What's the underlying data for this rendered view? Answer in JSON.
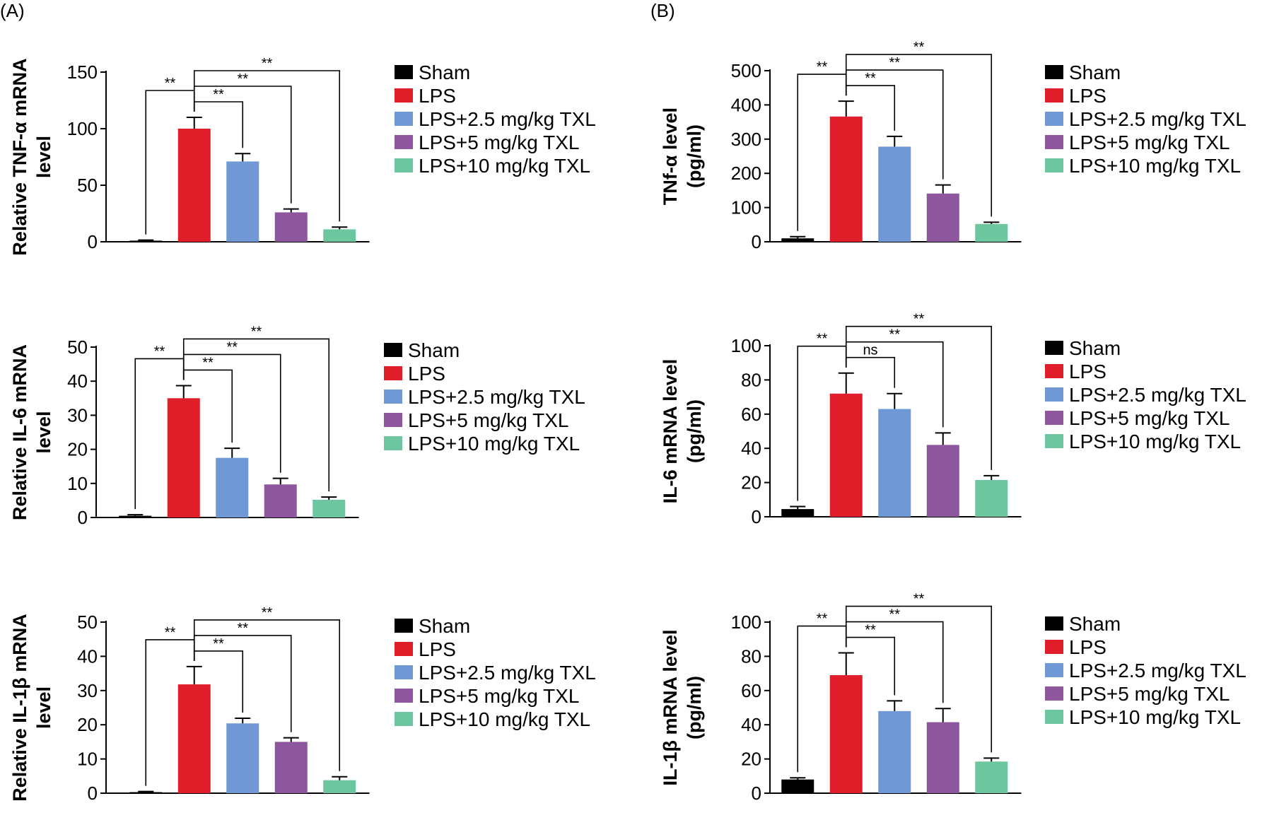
{
  "panels": [
    {
      "label": "(A)"
    },
    {
      "label": "(B)"
    }
  ],
  "legend": [
    {
      "name": "Sham",
      "color": "#000000"
    },
    {
      "name": "LPS",
      "color": "#e01e2a"
    },
    {
      "name": "LPS+2.5 mg/kg TXL",
      "color": "#6f98d4"
    },
    {
      "name": "LPS+5 mg/kg TXL",
      "color": "#8e569c"
    },
    {
      "name": "LPS+10 mg/kg TXL",
      "color": "#6cc7a0"
    }
  ],
  "chart_data": [
    {
      "type": "bar",
      "panel": "A",
      "ylabel_lines": [
        "Relative TNF-α mRNA",
        "level"
      ],
      "ylim": [
        0,
        150
      ],
      "yticks": [
        0,
        50,
        100,
        150
      ],
      "categories": [
        "Sham",
        "LPS",
        "LPS+2.5 mg/kg TXL",
        "LPS+5 mg/kg TXL",
        "LPS+10 mg/kg TXL"
      ],
      "values": [
        1,
        100,
        71,
        26,
        11
      ],
      "errors": [
        0.5,
        10,
        7,
        3,
        2
      ],
      "brackets": [
        {
          "from": 0,
          "to": 1,
          "label": "**"
        },
        {
          "from": 1,
          "to": 2,
          "label": "**"
        },
        {
          "from": 1,
          "to": 3,
          "label": "**"
        },
        {
          "from": 1,
          "to": 4,
          "label": "**"
        }
      ]
    },
    {
      "type": "bar",
      "panel": "A",
      "ylabel_lines": [
        "Relative IL-6 mRNA",
        "level"
      ],
      "ylim": [
        0,
        50
      ],
      "yticks": [
        0,
        10,
        20,
        30,
        40,
        50
      ],
      "categories": [
        "Sham",
        "LPS",
        "LPS+2.5 mg/kg TXL",
        "LPS+5 mg/kg TXL",
        "LPS+10 mg/kg TXL"
      ],
      "values": [
        0.5,
        35,
        17.5,
        9.7,
        5.2
      ],
      "errors": [
        0.3,
        3.7,
        2.8,
        1.8,
        0.8
      ],
      "brackets": [
        {
          "from": 0,
          "to": 1,
          "label": "**"
        },
        {
          "from": 1,
          "to": 2,
          "label": "**"
        },
        {
          "from": 1,
          "to": 3,
          "label": "**"
        },
        {
          "from": 1,
          "to": 4,
          "label": "**"
        }
      ]
    },
    {
      "type": "bar",
      "panel": "A",
      "ylabel_lines": [
        "Relative IL-1β mRNA",
        "level"
      ],
      "ylim": [
        0,
        50
      ],
      "yticks": [
        0,
        10,
        20,
        30,
        40,
        50
      ],
      "categories": [
        "Sham",
        "LPS",
        "LPS+2.5 mg/kg TXL",
        "LPS+5 mg/kg TXL",
        "LPS+10 mg/kg TXL"
      ],
      "values": [
        0.3,
        31.8,
        20.4,
        15,
        3.8
      ],
      "errors": [
        0.2,
        5.2,
        1.5,
        1.2,
        1
      ],
      "brackets": [
        {
          "from": 0,
          "to": 1,
          "label": "**"
        },
        {
          "from": 1,
          "to": 2,
          "label": "**"
        },
        {
          "from": 1,
          "to": 3,
          "label": "**"
        },
        {
          "from": 1,
          "to": 4,
          "label": "**"
        }
      ]
    },
    {
      "type": "bar",
      "panel": "B",
      "ylabel_lines": [
        "TNf-α level",
        "(pg/ml)"
      ],
      "ylim": [
        0,
        500
      ],
      "yticks": [
        0,
        100,
        200,
        300,
        400,
        500
      ],
      "categories": [
        "Sham",
        "LPS",
        "LPS+2.5 mg/kg TXL",
        "LPS+5 mg/kg TXL",
        "LPS+10 mg/kg TXL"
      ],
      "values": [
        10,
        366,
        278,
        141,
        52
      ],
      "errors": [
        5,
        45,
        30,
        25,
        5
      ],
      "brackets": [
        {
          "from": 0,
          "to": 1,
          "label": "**"
        },
        {
          "from": 1,
          "to": 2,
          "label": "**"
        },
        {
          "from": 1,
          "to": 3,
          "label": "**"
        },
        {
          "from": 1,
          "to": 4,
          "label": "**"
        }
      ]
    },
    {
      "type": "bar",
      "panel": "B",
      "ylabel_lines": [
        "IL-6 mRNA level",
        "(pg/ml)"
      ],
      "ylim": [
        0,
        100
      ],
      "yticks": [
        0,
        20,
        40,
        60,
        80,
        100
      ],
      "categories": [
        "Sham",
        "LPS",
        "LPS+2.5 mg/kg TXL",
        "LPS+5 mg/kg TXL",
        "LPS+10 mg/kg TXL"
      ],
      "values": [
        4.5,
        72,
        63,
        42,
        21.5
      ],
      "errors": [
        1.5,
        12,
        9,
        7,
        2.5
      ],
      "brackets": [
        {
          "from": 0,
          "to": 1,
          "label": "**"
        },
        {
          "from": 1,
          "to": 2,
          "label": "ns"
        },
        {
          "from": 1,
          "to": 3,
          "label": "**"
        },
        {
          "from": 1,
          "to": 4,
          "label": "**"
        }
      ]
    },
    {
      "type": "bar",
      "panel": "B",
      "ylabel_lines": [
        "IL-1β mRNA level",
        "(pg/ml)"
      ],
      "ylim": [
        0,
        100
      ],
      "yticks": [
        0,
        20,
        40,
        60,
        80,
        100
      ],
      "categories": [
        "Sham",
        "LPS",
        "LPS+2.5 mg/kg TXL",
        "LPS+5 mg/kg TXL",
        "LPS+10 mg/kg TXL"
      ],
      "values": [
        8,
        69,
        48,
        41.5,
        18.5
      ],
      "errors": [
        1,
        13,
        6,
        8,
        2
      ],
      "brackets": [
        {
          "from": 0,
          "to": 1,
          "label": "**"
        },
        {
          "from": 1,
          "to": 2,
          "label": "**"
        },
        {
          "from": 1,
          "to": 3,
          "label": "**"
        },
        {
          "from": 1,
          "to": 4,
          "label": "**"
        }
      ]
    }
  ]
}
